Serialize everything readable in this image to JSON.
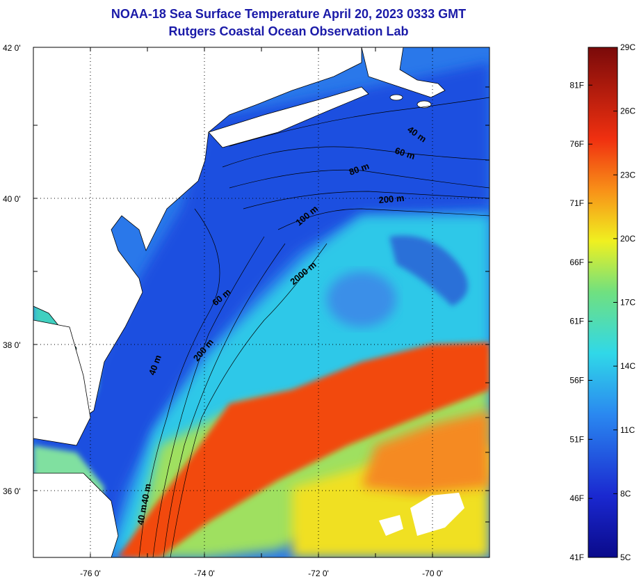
{
  "header": {
    "title": "NOAA-18 Sea Surface Temperature April 20, 2023 0333 GMT",
    "subtitle": "Rutgers Coastal Ocean Observation Lab"
  },
  "map": {
    "lat_labels": [
      "42 0'",
      "40 0'",
      "38 0'",
      "36 0'"
    ],
    "lon_labels": [
      "-76 0'",
      "-74 0'",
      "-72 0'",
      "-70 0'"
    ],
    "contour_labels": [
      "40 m",
      "60 m",
      "80 m",
      "200 m",
      "100 m",
      "2000 m",
      "60 m",
      "200 m",
      "40 m",
      "40 m",
      "40 m"
    ],
    "colors": {
      "ocean_cold": "#1f5fe0",
      "ocean_cool": "#2ec8e8",
      "gulf_stream": "#f24a10",
      "land": "#ffffff"
    }
  },
  "colorbar": {
    "celsius": [
      "29C",
      "26C",
      "23C",
      "20C",
      "17C",
      "14C",
      "11C",
      "8C",
      "5C"
    ],
    "fahrenheit": [
      "81F",
      "76F",
      "71F",
      "66F",
      "61F",
      "56F",
      "51F",
      "46F",
      "41F"
    ]
  }
}
